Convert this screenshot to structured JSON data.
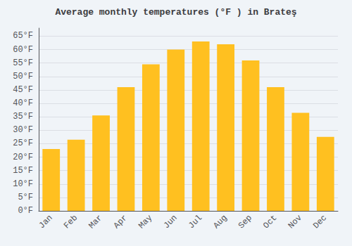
{
  "chart_data": {
    "type": "bar",
    "title": "Average monthly temperatures (°F ) in Brateş",
    "categories": [
      "Jan",
      "Feb",
      "Mar",
      "Apr",
      "May",
      "Jun",
      "Jul",
      "Aug",
      "Sep",
      "Oct",
      "Nov",
      "Dec"
    ],
    "values": [
      23,
      26.5,
      35.5,
      46,
      54.5,
      60,
      63,
      62,
      56,
      46,
      36.5,
      27.5
    ],
    "color": "#FFC020",
    "ylim": [
      0,
      68
    ],
    "yticks": [
      {
        "value": 0,
        "label": "0°F"
      },
      {
        "value": 5,
        "label": "5°F"
      },
      {
        "value": 10,
        "label": "10°F"
      },
      {
        "value": 15,
        "label": "15°F"
      },
      {
        "value": 20,
        "label": "20°F"
      },
      {
        "value": 25,
        "label": "25°F"
      },
      {
        "value": 30,
        "label": "30°F"
      },
      {
        "value": 35,
        "label": "35°F"
      },
      {
        "value": 40,
        "label": "40°F"
      },
      {
        "value": 45,
        "label": "45°F"
      },
      {
        "value": 50,
        "label": "50°F"
      },
      {
        "value": 55,
        "label": "55°F"
      },
      {
        "value": 60,
        "label": "60°F"
      },
      {
        "value": 65,
        "label": "65°F"
      }
    ],
    "grid": true
  }
}
